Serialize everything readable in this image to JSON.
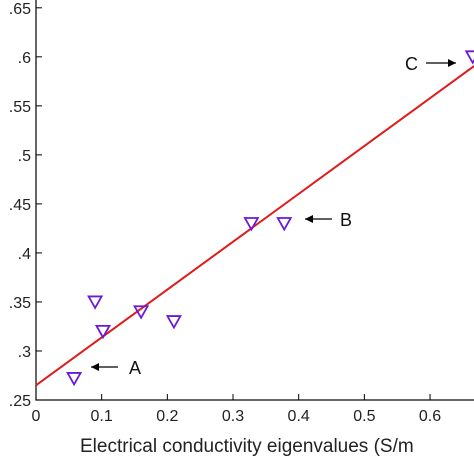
{
  "chart_data": {
    "type": "scatter",
    "title": "",
    "xlabel": "Electrical conductivity eigenvalues (S/m",
    "ylabel": "",
    "xlim": [
      0,
      0.67
    ],
    "ylim": [
      2.5,
      6.6
    ],
    "grid": false,
    "legend": "none",
    "x_ticks": [
      {
        "value": 0,
        "label": "0"
      },
      {
        "value": 0.1,
        "label": "0.1"
      },
      {
        "value": 0.2,
        "label": "0.2"
      },
      {
        "value": 0.3,
        "label": "0.3"
      },
      {
        "value": 0.4,
        "label": "0.4"
      },
      {
        "value": 0.5,
        "label": "0.5"
      },
      {
        "value": 0.6,
        "label": "0.6"
      }
    ],
    "y_ticks": [
      {
        "value": 2.5,
        "label": ".25"
      },
      {
        "value": 3.0,
        "label": ".3"
      },
      {
        "value": 3.5,
        "label": ".35"
      },
      {
        "value": 4.0,
        "label": ".4"
      },
      {
        "value": 4.5,
        "label": ".45"
      },
      {
        "value": 5.0,
        "label": ".5"
      },
      {
        "value": 5.5,
        "label": ".55"
      },
      {
        "value": 6.0,
        "label": ".6"
      },
      {
        "value": 6.5,
        "label": ".65"
      }
    ],
    "series": [
      {
        "marker": "down-triangle",
        "color": "#6a1bd6",
        "points": [
          {
            "x": 0.058,
            "y": 2.72
          },
          {
            "x": 0.09,
            "y": 3.5
          },
          {
            "x": 0.102,
            "y": 3.2
          },
          {
            "x": 0.16,
            "y": 3.4
          },
          {
            "x": 0.21,
            "y": 3.3
          },
          {
            "x": 0.328,
            "y": 4.3
          },
          {
            "x": 0.378,
            "y": 4.3
          },
          {
            "x": 0.665,
            "y": 6.0
          }
        ]
      }
    ],
    "fit_line": {
      "color": "#e01b1b",
      "x": [
        0,
        0.67
      ],
      "y": [
        2.65,
        5.92
      ]
    },
    "annotations": [
      {
        "label": "A",
        "x": 0.058,
        "y": 2.72
      },
      {
        "label": "B",
        "x": 0.378,
        "y": 4.3
      },
      {
        "label": "C",
        "x": 0.665,
        "y": 6.0
      }
    ]
  }
}
